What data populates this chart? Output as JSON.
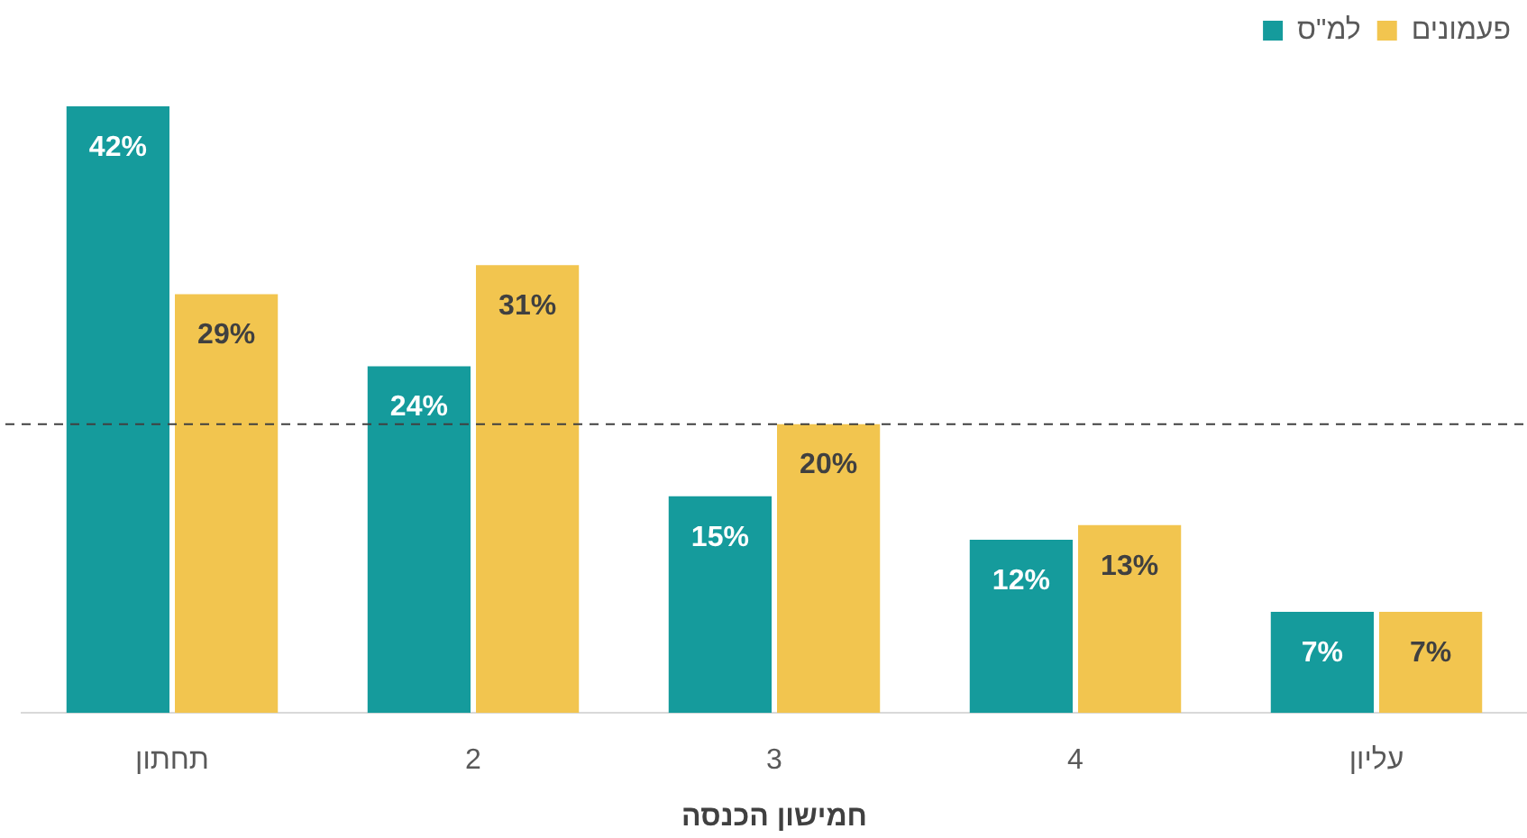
{
  "chart_data": {
    "type": "bar",
    "xlabel": "חמישון הכנסה",
    "categories": [
      "תחתון",
      "2",
      "3",
      "4",
      "עליון"
    ],
    "series": [
      {
        "name": "למ\"ס",
        "color": "#159b9c",
        "values": [
          42,
          24,
          15,
          12,
          7
        ],
        "value_labels": [
          "42%",
          "24%",
          "15%",
          "12%",
          "7%"
        ]
      },
      {
        "name": "פעמונים",
        "color": "#f2c54f",
        "values": [
          29,
          31,
          20,
          13,
          7
        ],
        "value_labels": [
          "29%",
          "31%",
          "20%",
          "13%",
          "7%"
        ]
      }
    ],
    "tick_labels": "x",
    "grid": false,
    "legend": "top right",
    "ref_lines": [
      {
        "axis": "y",
        "value": 20,
        "color": "#404040",
        "line_style": "dashed"
      }
    ]
  }
}
